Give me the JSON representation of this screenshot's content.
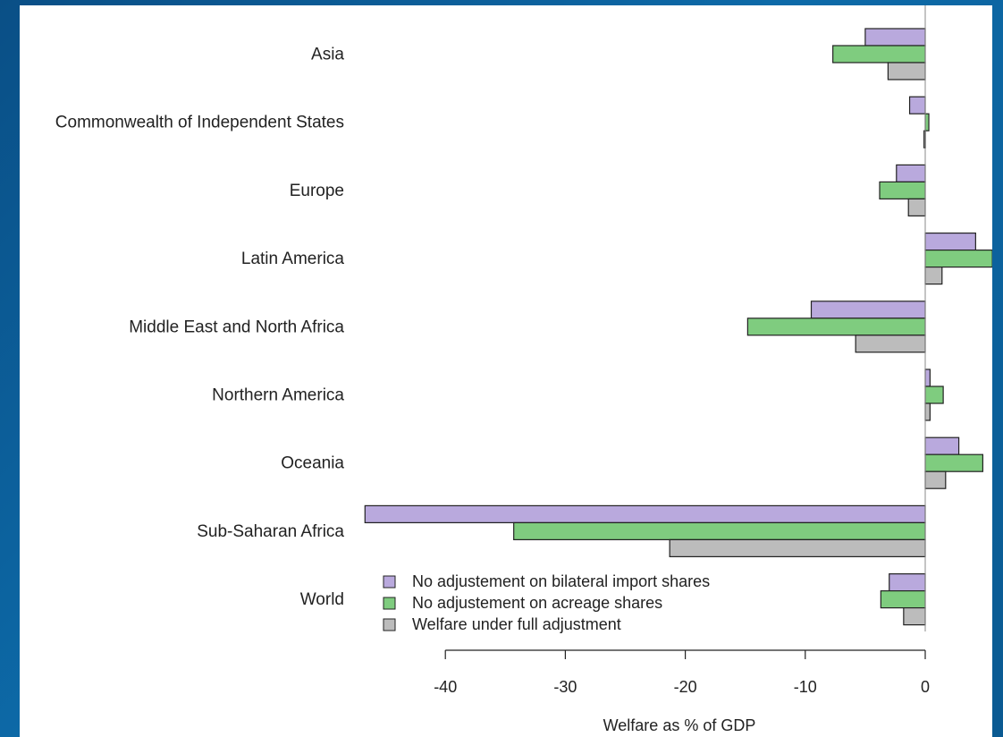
{
  "chart_data": {
    "type": "bar",
    "orientation": "horizontal",
    "title": "",
    "xlabel": "Welfare as % of GDP",
    "ylabel": "",
    "categories": [
      "Asia",
      "Commonwealth of Independent States",
      "Europe",
      "Latin America",
      "Middle East and North Africa",
      "Northern America",
      "Oceania",
      "Sub-Saharan Africa",
      "World"
    ],
    "series": [
      {
        "name": "No adjustement on bilateral import shares",
        "color": "#b9a9dd",
        "values": [
          -5.0,
          -1.3,
          -2.4,
          4.2,
          -9.5,
          0.4,
          2.8,
          -46.7,
          -3.0
        ]
      },
      {
        "name": "No adjustement on acreage shares",
        "color": "#7fcc7f",
        "values": [
          -7.7,
          0.3,
          -3.8,
          5.6,
          -14.8,
          1.5,
          4.8,
          -34.3,
          -3.7
        ]
      },
      {
        "name": "Welfare under full adjustment",
        "color": "#bcbcbc",
        "values": [
          -3.1,
          -0.1,
          -1.4,
          1.4,
          -5.8,
          0.4,
          1.7,
          -21.3,
          -1.8
        ]
      }
    ],
    "xticks": [
      -40,
      -30,
      -20,
      -10,
      0
    ],
    "xlim": [
      -47,
      6
    ],
    "grid": false,
    "legend_position": "bottom-right, inside"
  }
}
